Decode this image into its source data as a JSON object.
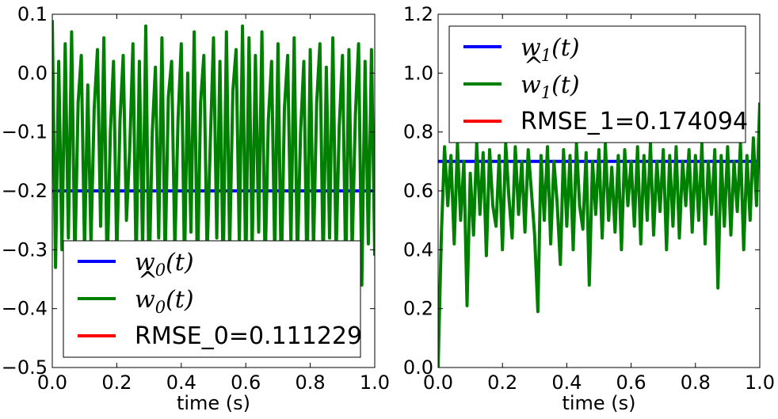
{
  "chart_data": [
    {
      "type": "line",
      "xlabel": "time (s)",
      "ylabel": "",
      "xlim": [
        0.0,
        1.0
      ],
      "ylim": [
        -0.5,
        0.1
      ],
      "xticks": [
        "0.0",
        "0.2",
        "0.4",
        "0.6",
        "0.8",
        "1.0"
      ],
      "yticks": [
        "0.1",
        "0.0",
        "−0.1",
        "−0.2",
        "−0.3",
        "−0.4",
        "−0.5"
      ],
      "grid": false,
      "legend_position": "lower-right",
      "legend": [
        {
          "label_base": "w",
          "label_sub": "0",
          "label_tail": "(t)",
          "hat": false,
          "color": "#0000ff"
        },
        {
          "label_base": "w",
          "label_sub": "0",
          "label_tail": "(t)",
          "hat": true,
          "color": "#008000"
        },
        {
          "label": "RMSE_0=0.111229",
          "color": "#ff0000"
        }
      ],
      "series": [
        {
          "key": "true",
          "color": "#0000ff",
          "x": [
            0.0,
            1.0
          ],
          "y": [
            -0.2,
            -0.2
          ]
        },
        {
          "key": "estimate",
          "color": "#008000",
          "x": [
            0.0,
            0.01,
            0.02,
            0.03,
            0.04,
            0.05,
            0.06,
            0.07,
            0.08,
            0.09,
            0.1,
            0.11,
            0.12,
            0.13,
            0.14,
            0.15,
            0.16,
            0.17,
            0.18,
            0.19,
            0.2,
            0.21,
            0.22,
            0.23,
            0.24,
            0.25,
            0.26,
            0.27,
            0.28,
            0.29,
            0.3,
            0.31,
            0.32,
            0.33,
            0.34,
            0.35,
            0.36,
            0.37,
            0.38,
            0.39,
            0.4,
            0.41,
            0.42,
            0.43,
            0.44,
            0.45,
            0.46,
            0.47,
            0.48,
            0.49,
            0.5,
            0.51,
            0.52,
            0.53,
            0.54,
            0.55,
            0.56,
            0.57,
            0.58,
            0.59,
            0.6,
            0.61,
            0.62,
            0.63,
            0.64,
            0.65,
            0.66,
            0.67,
            0.68,
            0.69,
            0.7,
            0.71,
            0.72,
            0.73,
            0.74,
            0.75,
            0.76,
            0.77,
            0.78,
            0.79,
            0.8,
            0.81,
            0.82,
            0.83,
            0.84,
            0.85,
            0.86,
            0.87,
            0.88,
            0.89,
            0.9,
            0.91,
            0.92,
            0.93,
            0.94,
            0.95,
            0.96,
            0.97,
            0.98,
            0.99,
            1.0
          ],
          "y": [
            0.09,
            -0.33,
            0.02,
            -0.3,
            0.05,
            -0.28,
            0.07,
            -0.32,
            -0.05,
            0.03,
            -0.3,
            -0.02,
            -0.29,
            -0.06,
            0.04,
            -0.26,
            0.06,
            -0.34,
            -0.1,
            0.02,
            -0.31,
            -0.08,
            0.03,
            -0.25,
            -0.13,
            0.05,
            -0.33,
            0.02,
            -0.3,
            0.08,
            -0.36,
            -0.1,
            0.01,
            -0.28,
            0.06,
            -0.32,
            -0.04,
            0.02,
            -0.3,
            -0.08,
            0.05,
            -0.33,
            0.0,
            -0.27,
            0.07,
            -0.35,
            -0.05,
            0.03,
            -0.31,
            -0.12,
            0.06,
            -0.28,
            0.02,
            -0.34,
            0.07,
            -0.3,
            -0.03,
            0.04,
            -0.29,
            0.08,
            -0.34,
            0.06,
            -0.3,
            0.03,
            -0.27,
            0.07,
            -0.33,
            -0.08,
            0.02,
            -0.31,
            0.05,
            -0.35,
            -0.06,
            0.03,
            -0.29,
            0.06,
            -0.32,
            -0.1,
            0.02,
            -0.35,
            0.04,
            -0.3,
            -0.05,
            0.05,
            -0.33,
            0.01,
            -0.28,
            0.06,
            -0.31,
            -0.09,
            0.03,
            -0.34,
            0.04,
            -0.3,
            -0.07,
            0.05,
            -0.36,
            0.02,
            -0.29,
            0.04,
            -0.31
          ]
        },
        {
          "key": "rmse",
          "color": "#ff0000",
          "x": [],
          "y": []
        }
      ]
    },
    {
      "type": "line",
      "xlabel": "time (s)",
      "ylabel": "",
      "xlim": [
        0.0,
        1.0
      ],
      "ylim": [
        0.0,
        1.2
      ],
      "xticks": [
        "0.0",
        "0.2",
        "0.4",
        "0.6",
        "0.8",
        "1.0"
      ],
      "yticks": [
        "1.2",
        "1.0",
        "0.8",
        "0.6",
        "0.4",
        "0.2",
        "0.0"
      ],
      "grid": false,
      "legend_position": "upper-right",
      "legend": [
        {
          "label_base": "w",
          "label_sub": "1",
          "label_tail": "(t)",
          "hat": false,
          "color": "#0000ff"
        },
        {
          "label_base": "w",
          "label_sub": "1",
          "label_tail": "(t)",
          "hat": true,
          "color": "#008000"
        },
        {
          "label": "RMSE_1=0.174094",
          "color": "#ff0000"
        }
      ],
      "series": [
        {
          "key": "true",
          "color": "#0000ff",
          "x": [
            0.0,
            1.0
          ],
          "y": [
            0.7,
            0.7
          ]
        },
        {
          "key": "estimate",
          "color": "#008000",
          "x": [
            0.0,
            0.01,
            0.02,
            0.03,
            0.04,
            0.05,
            0.06,
            0.07,
            0.08,
            0.09,
            0.1,
            0.11,
            0.12,
            0.13,
            0.14,
            0.15,
            0.16,
            0.17,
            0.18,
            0.19,
            0.2,
            0.21,
            0.22,
            0.23,
            0.24,
            0.25,
            0.26,
            0.27,
            0.28,
            0.29,
            0.3,
            0.31,
            0.32,
            0.33,
            0.34,
            0.35,
            0.36,
            0.37,
            0.38,
            0.39,
            0.4,
            0.41,
            0.42,
            0.43,
            0.44,
            0.45,
            0.46,
            0.47,
            0.48,
            0.49,
            0.5,
            0.51,
            0.52,
            0.53,
            0.54,
            0.55,
            0.56,
            0.57,
            0.58,
            0.59,
            0.6,
            0.61,
            0.62,
            0.63,
            0.64,
            0.65,
            0.66,
            0.67,
            0.68,
            0.69,
            0.7,
            0.71,
            0.72,
            0.73,
            0.74,
            0.75,
            0.76,
            0.77,
            0.78,
            0.79,
            0.8,
            0.81,
            0.82,
            0.83,
            0.84,
            0.85,
            0.86,
            0.87,
            0.88,
            0.89,
            0.9,
            0.91,
            0.92,
            0.93,
            0.94,
            0.95,
            0.96,
            0.97,
            0.98,
            0.99,
            1.0
          ],
          "y": [
            0.0,
            0.45,
            0.75,
            0.55,
            0.72,
            0.42,
            0.76,
            0.5,
            0.7,
            0.21,
            0.66,
            0.45,
            0.76,
            0.52,
            0.73,
            0.38,
            0.74,
            0.55,
            0.48,
            0.72,
            0.4,
            0.76,
            0.58,
            0.44,
            0.75,
            0.52,
            0.7,
            0.46,
            0.74,
            0.6,
            0.45,
            0.19,
            0.72,
            0.5,
            0.75,
            0.42,
            0.7,
            0.56,
            0.35,
            0.74,
            0.48,
            0.72,
            0.4,
            0.76,
            0.55,
            0.47,
            0.73,
            0.28,
            0.7,
            0.52,
            0.74,
            0.44,
            0.76,
            0.5,
            0.68,
            0.46,
            0.72,
            0.4,
            0.74,
            0.55,
            0.7,
            0.48,
            0.75,
            0.42,
            0.72,
            0.5,
            0.76,
            0.45,
            0.7,
            0.53,
            0.74,
            0.4,
            0.72,
            0.48,
            0.75,
            0.44,
            0.7,
            0.55,
            0.74,
            0.46,
            0.72,
            0.5,
            0.76,
            0.42,
            0.7,
            0.52,
            0.74,
            0.27,
            0.72,
            0.48,
            0.75,
            0.45,
            0.7,
            0.53,
            0.76,
            0.4,
            0.72,
            0.5,
            0.78,
            0.55,
            0.9
          ]
        },
        {
          "key": "rmse",
          "color": "#ff0000",
          "x": [],
          "y": []
        }
      ]
    }
  ]
}
